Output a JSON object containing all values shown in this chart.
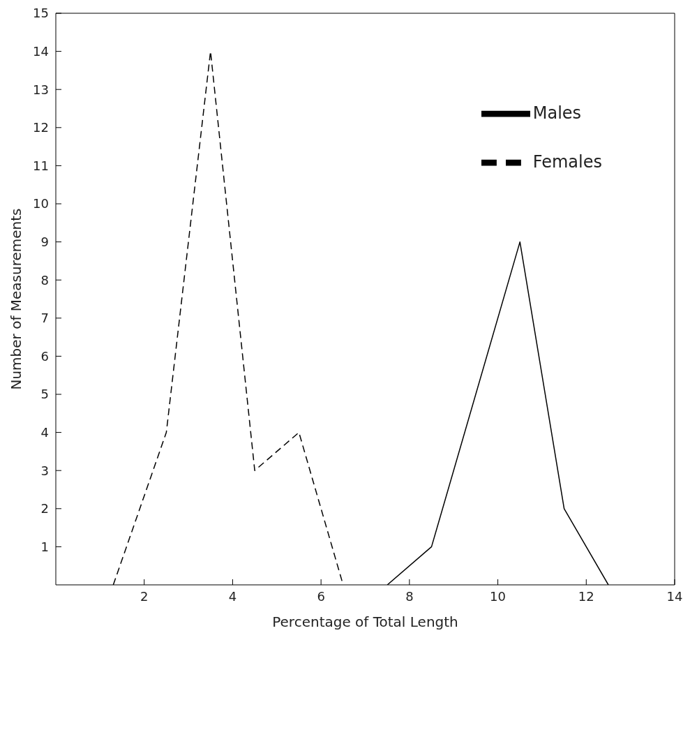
{
  "chart_data": {
    "type": "line",
    "xlabel": "Percentage of Total Length",
    "ylabel": "Number of Measurements",
    "xlim": [
      0,
      14
    ],
    "xticks": [
      2,
      4,
      6,
      8,
      10,
      12,
      14
    ],
    "ylim": [
      0,
      15
    ],
    "yticks": [
      1,
      2,
      3,
      4,
      5,
      6,
      7,
      8,
      9,
      10,
      11,
      12,
      13,
      14,
      15
    ],
    "grid": false,
    "legend": "top right",
    "series": [
      {
        "name": "Males",
        "color": "#000000",
        "line_style": "solid",
        "x": [
          7.5,
          8.5,
          10.5,
          11.5,
          12.5
        ],
        "values": [
          0,
          1,
          9,
          2,
          0
        ]
      },
      {
        "name": "Females",
        "color": "#000000",
        "line_style": "dashed",
        "x": [
          1.3,
          2.5,
          3.5,
          4.5,
          5.5,
          6.5
        ],
        "values": [
          0,
          4,
          14,
          3,
          4,
          0
        ]
      }
    ]
  }
}
